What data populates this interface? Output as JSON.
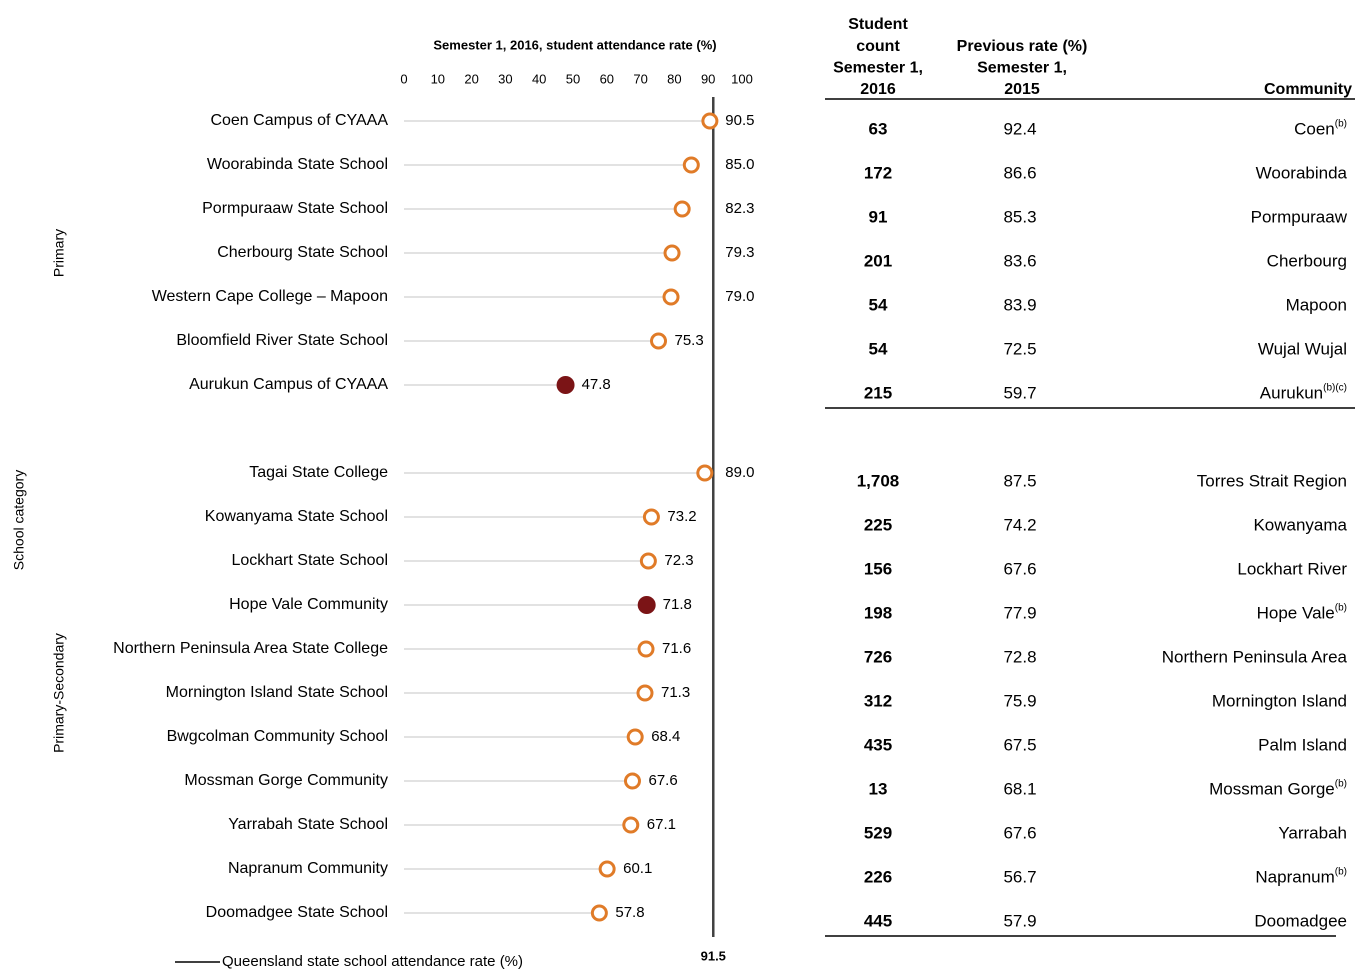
{
  "chart_data": {
    "type": "dot",
    "title": "Semester 1, 2016, student attendance rate (%)",
    "y_axis_label": "School category",
    "xlim": [
      0,
      100
    ],
    "xticks": [
      0,
      10,
      20,
      30,
      40,
      50,
      60,
      70,
      80,
      90,
      100
    ],
    "color": "#e07b28",
    "highlight_color": "#7b1416",
    "reference": {
      "value": 91.5,
      "label": "Queensland state school attendance rate (%)",
      "color": "#404040"
    },
    "groups": [
      {
        "name": "Primary",
        "categories": [
          "Coen Campus of CYAAA",
          "Woorabinda State School",
          "Pormpuraaw State School",
          "Cherbourg State School",
          "Western Cape College – Mapoon",
          "Bloomfield River State School",
          "Aurukun Campus of CYAAA"
        ],
        "values": [
          90.5,
          85.0,
          82.3,
          79.3,
          79.0,
          75.3,
          47.8
        ],
        "value_labels": [
          "90.5",
          "85.0",
          "82.3",
          "79.3",
          "79.0",
          "75.3",
          "47.8"
        ],
        "highlight": [
          false,
          false,
          false,
          false,
          false,
          false,
          true
        ]
      },
      {
        "name": "Primary-Secondary",
        "categories": [
          "Tagai State College",
          "Kowanyama State School",
          "Lockhart State School",
          "Hope Vale Community",
          "Northern Peninsula Area State College",
          "Mornington Island State School",
          "Bwgcolman Community School",
          "Mossman Gorge Community",
          "Yarrabah State School",
          "Napranum Community",
          "Doomadgee State School"
        ],
        "values": [
          89.0,
          73.2,
          72.3,
          71.8,
          71.6,
          71.3,
          68.4,
          67.6,
          67.1,
          60.1,
          57.8
        ],
        "value_labels": [
          "89.0",
          "73.2",
          "72.3",
          "71.8",
          "71.6",
          "71.3",
          "68.4",
          "67.6",
          "67.1",
          "60.1",
          "57.8"
        ],
        "highlight": [
          false,
          false,
          false,
          true,
          false,
          false,
          false,
          false,
          false,
          false,
          false
        ]
      }
    ]
  },
  "table": {
    "headers": [
      [
        "Student",
        "count",
        "Semester 1,",
        "2016"
      ],
      [
        "Previous rate (%)",
        "Semester 1,",
        "2015"
      ],
      [
        "Community"
      ]
    ],
    "groups": [
      [
        [
          "63",
          "92.4",
          {
            "name": "Coen",
            "note": "(b)"
          }
        ],
        [
          "172",
          "86.6",
          {
            "name": "Woorabinda"
          }
        ],
        [
          "91",
          "85.3",
          {
            "name": "Pormpuraaw"
          }
        ],
        [
          "201",
          "83.6",
          {
            "name": "Cherbourg"
          }
        ],
        [
          "54",
          "83.9",
          {
            "name": "Mapoon"
          }
        ],
        [
          "54",
          "72.5",
          {
            "name": "Wujal Wujal"
          }
        ],
        [
          "215",
          "59.7",
          {
            "name": "Aurukun",
            "note": "(b)(c)"
          }
        ]
      ],
      [
        [
          "1,708",
          "87.5",
          {
            "name": "Torres Strait Region"
          }
        ],
        [
          "225",
          "74.2",
          {
            "name": "Kowanyama"
          }
        ],
        [
          "156",
          "67.6",
          {
            "name": "Lockhart River"
          }
        ],
        [
          "198",
          "77.9",
          {
            "name": "Hope Vale",
            "note": "(b)"
          }
        ],
        [
          "726",
          "72.8",
          {
            "name": "Northern Peninsula Area"
          }
        ],
        [
          "312",
          "75.9",
          {
            "name": "Mornington Island"
          }
        ],
        [
          "435",
          "67.5",
          {
            "name": "Palm Island"
          }
        ],
        [
          "13",
          "68.1",
          {
            "name": "Mossman Gorge",
            "note": "(b)"
          }
        ],
        [
          "529",
          "67.6",
          {
            "name": "Yarrabah"
          }
        ],
        [
          "226",
          "56.7",
          {
            "name": "Napranum",
            "note": "(b)"
          }
        ],
        [
          "445",
          "57.9",
          {
            "name": "Doomadgee"
          }
        ]
      ]
    ]
  }
}
